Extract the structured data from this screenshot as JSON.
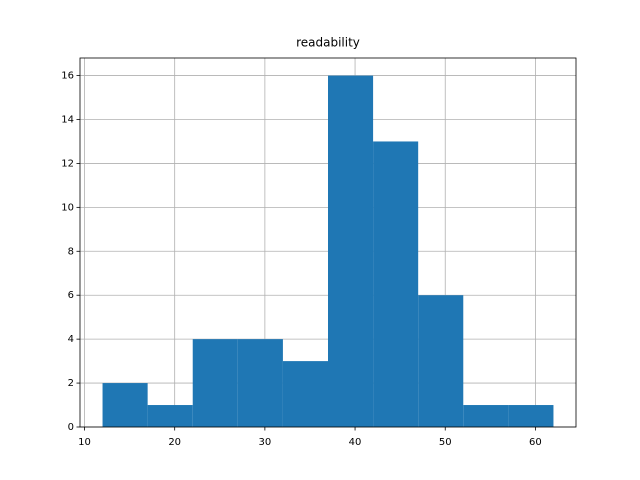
{
  "chart_data": {
    "type": "histogram",
    "title": "readability",
    "bins": [
      12,
      17,
      22,
      27,
      32,
      37,
      42,
      47,
      52,
      57,
      62
    ],
    "counts": [
      2,
      1,
      4,
      4,
      3,
      16,
      13,
      6,
      1,
      1
    ],
    "color": "#1f77b4",
    "xlim": [
      9.5,
      64.5
    ],
    "xticks": [
      10,
      20,
      30,
      40,
      50,
      60
    ],
    "ylim": [
      0,
      16.8
    ],
    "yticks": [
      0,
      2,
      4,
      6,
      8,
      10,
      12,
      14,
      16
    ],
    "grid": true
  }
}
